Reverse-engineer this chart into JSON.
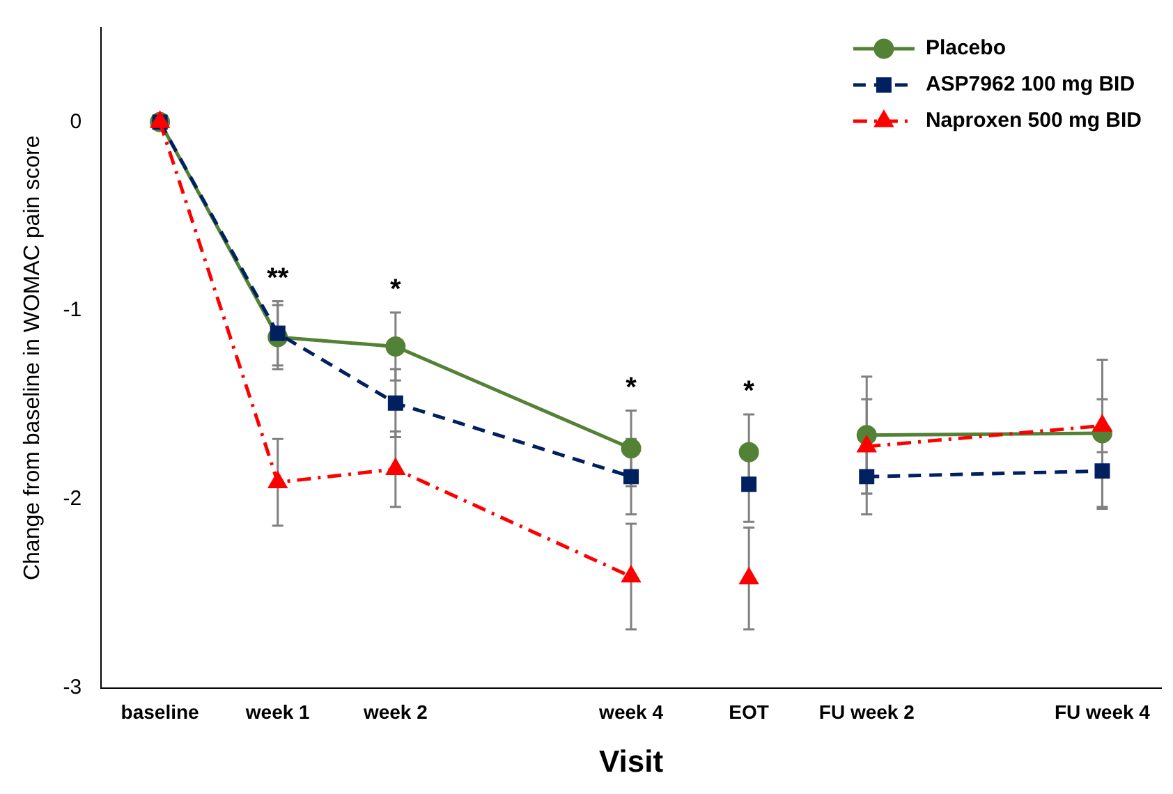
{
  "chart_data": {
    "type": "line",
    "xlabel": "Visit",
    "ylabel": "Change from baseline in WOMAC pain score",
    "categories": [
      "baseline",
      "week 1",
      "week 2",
      null,
      "week 4",
      "EOT",
      "FU week 2",
      null,
      "FU week 4"
    ],
    "ylim": [
      -3,
      0.5
    ],
    "yticks": [
      -3,
      -2,
      -1,
      0
    ],
    "grid": false,
    "legend": "top right",
    "series": [
      {
        "name": "Placebo",
        "color": "#538135",
        "marker": "circle",
        "line_style": "solid",
        "values": [
          0,
          -1.14,
          -1.19,
          null,
          -1.73,
          null,
          null,
          null,
          null
        ],
        "errors": [
          null,
          0.17,
          0.18,
          null,
          0.2,
          null,
          null,
          null,
          null
        ]
      },
      {
        "color": "#538135",
        "marker": "circle",
        "line_style": "solid",
        "values": [
          null,
          null,
          null,
          null,
          null,
          -1.75,
          null,
          null,
          null
        ],
        "errors": [
          null,
          null,
          null,
          null,
          null,
          0.2,
          null,
          null,
          null
        ]
      },
      {
        "color": "#538135",
        "marker": "circle",
        "line_style": "solid",
        "values": [
          null,
          null,
          null,
          null,
          null,
          null,
          -1.66,
          null,
          -1.65
        ],
        "errors": [
          null,
          null,
          null,
          null,
          null,
          null,
          0.31,
          null,
          0.39
        ]
      },
      {
        "name": "ASP7962 100 mg BID",
        "color": "#002060",
        "marker": "square",
        "line_style": "dashed",
        "values": [
          0,
          -1.12,
          -1.49,
          null,
          -1.88,
          null,
          null,
          null,
          null
        ],
        "errors": [
          null,
          0.17,
          0.18,
          null,
          0.2,
          null,
          null,
          null,
          null
        ]
      },
      {
        "color": "#002060",
        "marker": "square",
        "line_style": "dashed",
        "values": [
          null,
          null,
          null,
          null,
          null,
          -1.92,
          null,
          null,
          null
        ],
        "errors": [
          null,
          null,
          null,
          null,
          null,
          0.2,
          null,
          null,
          null
        ]
      },
      {
        "color": "#002060",
        "marker": "square",
        "line_style": "dashed",
        "values": [
          null,
          null,
          null,
          null,
          null,
          null,
          -1.88,
          null,
          -1.85
        ],
        "errors": [
          null,
          null,
          null,
          null,
          null,
          null,
          0.2,
          null,
          0.2
        ]
      },
      {
        "name": "Naproxen 500 mg BID",
        "color": "#ff0000",
        "marker": "triangle",
        "line_style": "dashdot",
        "values": [
          0,
          -1.91,
          -1.84,
          null,
          -2.41,
          null,
          null,
          null,
          null
        ],
        "errors": [
          null,
          0.23,
          0.2,
          null,
          0.28,
          null,
          null,
          null,
          null
        ]
      },
      {
        "color": "#ff0000",
        "marker": "triangle",
        "line_style": "dashdot",
        "values": [
          null,
          null,
          null,
          null,
          null,
          -2.42,
          null,
          null,
          null
        ],
        "errors": [
          null,
          null,
          null,
          null,
          null,
          0.27,
          null,
          null,
          null
        ]
      },
      {
        "color": "#ff0000",
        "marker": "triangle",
        "line_style": "dashdot",
        "values": [
          null,
          null,
          null,
          null,
          null,
          null,
          -1.72,
          null,
          -1.61
        ],
        "errors": [
          null,
          null,
          null,
          null,
          null,
          null,
          0.25,
          null,
          0.14
        ]
      }
    ],
    "annotations": [
      {
        "text": "**",
        "x": "week 1",
        "y": -1.12
      },
      {
        "text": "*",
        "x": "week 2",
        "y": -1.19
      },
      {
        "text": "*",
        "x": "week 4",
        "y": -1.73
      },
      {
        "text": "*",
        "x": "EOT",
        "y": -1.75
      }
    ]
  }
}
